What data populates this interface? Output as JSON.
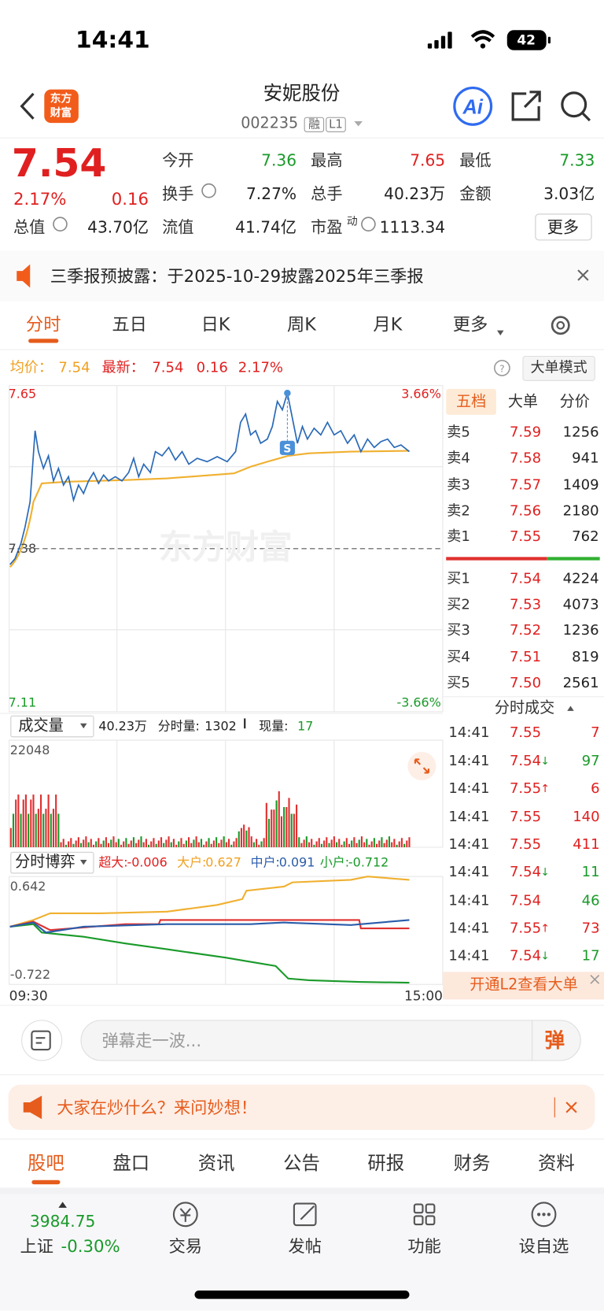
{
  "status_bar": {
    "time": "14:41",
    "battery": "42"
  },
  "header": {
    "logo": [
      "东方",
      "财富"
    ],
    "title": "安妮股份",
    "code": "002235",
    "tags": [
      "融",
      "L1"
    ]
  },
  "quote": {
    "price": "7.54",
    "change_pct": "2.17%",
    "change": "0.16",
    "fields": [
      {
        "label": "今开",
        "value": "7.36",
        "color": "#1a9a2a"
      },
      {
        "label": "最高",
        "value": "7.65",
        "color": "#e02020"
      },
      {
        "label": "最低",
        "value": "7.33",
        "color": "#1a9a2a"
      },
      {
        "label": "换手",
        "value": "7.27%",
        "color": "#222222"
      },
      {
        "label": "总手",
        "value": "40.23万",
        "color": "#222222"
      },
      {
        "label": "金额",
        "value": "3.03亿",
        "color": "#222222"
      },
      {
        "label": "总值",
        "value": "43.70亿",
        "color": "#222222"
      },
      {
        "label": "流值",
        "value": "41.74亿",
        "color": "#222222"
      },
      {
        "label": "市盈",
        "sup": "动",
        "value": "1113.34",
        "color": "#222222"
      }
    ],
    "more_button": "更多"
  },
  "notice": "三季报预披露：于2025-10-29披露2025年三季报",
  "tabs": [
    "分时",
    "五日",
    "日K",
    "周K",
    "月K",
    "更多"
  ],
  "summary": {
    "avg_label": "均价：",
    "avg": "7.54",
    "last_label": "最新：",
    "last": "7.54",
    "change": "0.16",
    "change_pct": "2.17%",
    "mode_button": "大单模式"
  },
  "price_chart": {
    "high": "7.65",
    "high_pct": "3.66%",
    "prev_close": "7.38",
    "low": "7.11",
    "low_pct": "-3.66%",
    "watermark": "东方财富"
  },
  "order_book": {
    "tabs": [
      "五档",
      "大单",
      "分价"
    ],
    "rows": [
      {
        "label": "卖5",
        "price": "7.59",
        "volume": "1256"
      },
      {
        "label": "卖4",
        "price": "7.58",
        "volume": "941"
      },
      {
        "label": "卖3",
        "price": "7.57",
        "volume": "1409"
      },
      {
        "label": "卖2",
        "price": "7.56",
        "volume": "2180"
      },
      {
        "label": "卖1",
        "price": "7.55",
        "volume": "762"
      },
      {
        "label": "买1",
        "price": "7.54",
        "volume": "4224"
      },
      {
        "label": "买2",
        "price": "7.53",
        "volume": "4073"
      },
      {
        "label": "买3",
        "price": "7.52",
        "volume": "1236"
      },
      {
        "label": "买4",
        "price": "7.51",
        "volume": "819"
      },
      {
        "label": "买5",
        "price": "7.50",
        "volume": "2561"
      }
    ]
  },
  "volume": {
    "selector": "成交量",
    "total": "40.23万",
    "minute_label": "分时量:",
    "minute": "1302",
    "now_label": "现量:",
    "now": "17",
    "max": "22048"
  },
  "trades": {
    "title": "分时成交",
    "rows": [
      {
        "time": "14:41",
        "price": "7.55",
        "volume": "7",
        "color": "#e02020"
      },
      {
        "time": "14:41",
        "price": "7.54",
        "arrow": "↓",
        "volume": "97",
        "color": "#1a9a2a"
      },
      {
        "time": "14:41",
        "price": "7.55",
        "arrow": "↑",
        "volume": "6",
        "color": "#e02020"
      },
      {
        "time": "14:41",
        "price": "7.55",
        "volume": "140",
        "color": "#e02020"
      },
      {
        "time": "14:41",
        "price": "7.55",
        "volume": "411",
        "color": "#e02020"
      },
      {
        "time": "14:41",
        "price": "7.54",
        "arrow": "↓",
        "volume": "11",
        "color": "#1a9a2a"
      },
      {
        "time": "14:41",
        "price": "7.54",
        "volume": "46",
        "color": "#1a9a2a"
      },
      {
        "time": "14:41",
        "price": "7.55",
        "arrow": "↑",
        "volume": "73",
        "color": "#e02020"
      },
      {
        "time": "14:41",
        "price": "7.54",
        "arrow": "↓",
        "volume": "17",
        "color": "#1a9a2a"
      }
    ]
  },
  "flow": {
    "selector": "分时博弈",
    "items": [
      {
        "label": "超大:",
        "value": "-0.006",
        "color": "#e02020"
      },
      {
        "label": "大户:",
        "value": "0.627",
        "color": "#f0a020"
      },
      {
        "label": "中户:",
        "value": "0.091",
        "color": "#2a5caa"
      },
      {
        "label": "小户:",
        "value": "-0.712",
        "color": "#1a9a2a"
      }
    ],
    "max": "0.642",
    "min": "-0.722",
    "start": "09:30",
    "end": "15:00"
  },
  "l2": "开通L2查看大单",
  "comment": {
    "placeholder": "弹幕走一波...",
    "button": "弹"
  },
  "banner": "大家在炒什么？来问妙想！",
  "bottom_tabs": [
    "股吧",
    "盘口",
    "资讯",
    "公告",
    "研报",
    "财务",
    "资料"
  ],
  "nav": {
    "index_value": "3984.75",
    "index_name": "上证",
    "index_change": "-0.30%",
    "items": [
      "交易",
      "发帖",
      "功能",
      "设自选"
    ]
  }
}
